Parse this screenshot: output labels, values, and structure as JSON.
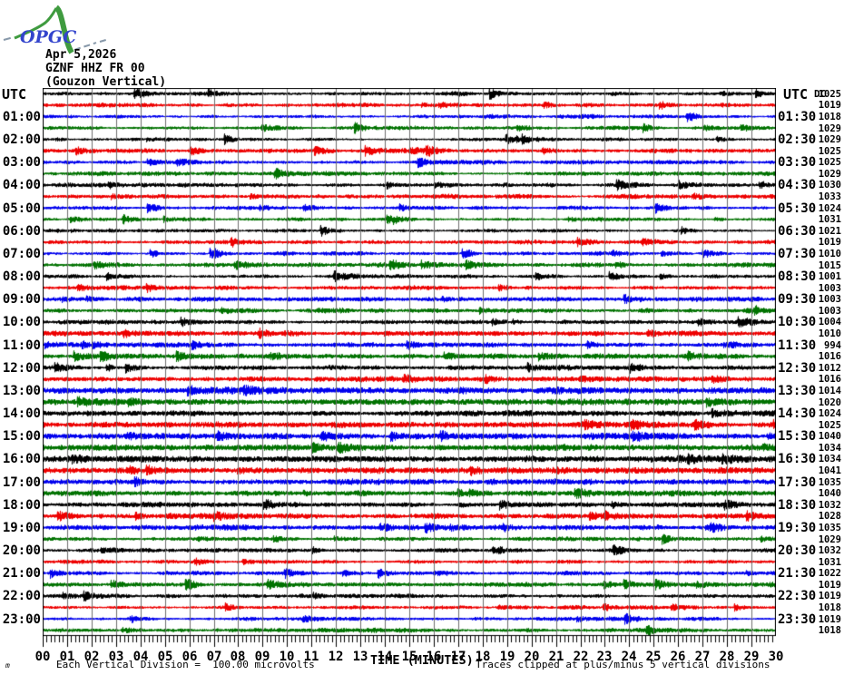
{
  "logo": {
    "text": "OPGC",
    "accent_green": "#3f9b3f",
    "accent_blue": "#3344cc",
    "dash_color": "#8899aa"
  },
  "header": {
    "date": "Apr 5,2026",
    "station": "GZNF HHZ FR 00",
    "location": "(Gouzon Vertical)"
  },
  "axis": {
    "left_header": "UTC",
    "right_header": "UTC",
    "dc_header": "DC",
    "xlabel": "TIME (MINUTES)",
    "x_ticks": [
      "00",
      "01",
      "02",
      "03",
      "04",
      "05",
      "06",
      "07",
      "08",
      "09",
      "10",
      "11",
      "12",
      "13",
      "14",
      "15",
      "16",
      "17",
      "18",
      "19",
      "20",
      "21",
      "22",
      "23",
      "24",
      "25",
      "26",
      "27",
      "28",
      "29",
      "30"
    ]
  },
  "footer": {
    "scale_note": "Each Vertical Division =  100.00 microvolts",
    "clip_note": "Traces clipped at plus/minus 5 vertical divisions",
    "corner_mark": "m"
  },
  "colors": {
    "trace_cycle": [
      "#000000",
      "#ee0000",
      "#0000ee",
      "#007200"
    ],
    "grid_line": "#6e6e6e",
    "frame": "#000000"
  },
  "rows": [
    {
      "start": "00:00",
      "left": "",
      "right": "",
      "dc": 1025
    },
    {
      "start": "00:30",
      "left": "",
      "right": "",
      "dc": 1019
    },
    {
      "start": "01:00",
      "left": "01:00",
      "right": "01:30",
      "dc": 1018
    },
    {
      "start": "01:30",
      "left": "",
      "right": "",
      "dc": 1029
    },
    {
      "start": "02:00",
      "left": "02:00",
      "right": "02:30",
      "dc": 1029
    },
    {
      "start": "02:30",
      "left": "",
      "right": "",
      "dc": 1025
    },
    {
      "start": "03:00",
      "left": "03:00",
      "right": "03:30",
      "dc": 1025
    },
    {
      "start": "03:30",
      "left": "",
      "right": "",
      "dc": 1029
    },
    {
      "start": "04:00",
      "left": "04:00",
      "right": "04:30",
      "dc": 1030
    },
    {
      "start": "04:30",
      "left": "",
      "right": "",
      "dc": 1033
    },
    {
      "start": "05:00",
      "left": "05:00",
      "right": "05:30",
      "dc": 1024
    },
    {
      "start": "05:30",
      "left": "",
      "right": "",
      "dc": 1031
    },
    {
      "start": "06:00",
      "left": "06:00",
      "right": "06:30",
      "dc": 1021
    },
    {
      "start": "06:30",
      "left": "",
      "right": "",
      "dc": 1019
    },
    {
      "start": "07:00",
      "left": "07:00",
      "right": "07:30",
      "dc": 1010
    },
    {
      "start": "07:30",
      "left": "",
      "right": "",
      "dc": 1015
    },
    {
      "start": "08:00",
      "left": "08:00",
      "right": "08:30",
      "dc": 1001
    },
    {
      "start": "08:30",
      "left": "",
      "right": "",
      "dc": 1003
    },
    {
      "start": "09:00",
      "left": "09:00",
      "right": "09:30",
      "dc": 1003
    },
    {
      "start": "09:30",
      "left": "",
      "right": "",
      "dc": 1003
    },
    {
      "start": "10:00",
      "left": "10:00",
      "right": "10:30",
      "dc": 1004
    },
    {
      "start": "10:30",
      "left": "",
      "right": "",
      "dc": 1010
    },
    {
      "start": "11:00",
      "left": "11:00",
      "right": "11:30",
      "dc": 994
    },
    {
      "start": "11:30",
      "left": "",
      "right": "",
      "dc": 1016
    },
    {
      "start": "12:00",
      "left": "12:00",
      "right": "12:30",
      "dc": 1012
    },
    {
      "start": "12:30",
      "left": "",
      "right": "",
      "dc": 1016
    },
    {
      "start": "13:00",
      "left": "13:00",
      "right": "13:30",
      "dc": 1014
    },
    {
      "start": "13:30",
      "left": "",
      "right": "",
      "dc": 1020
    },
    {
      "start": "14:00",
      "left": "14:00",
      "right": "14:30",
      "dc": 1024
    },
    {
      "start": "14:30",
      "left": "",
      "right": "",
      "dc": 1025
    },
    {
      "start": "15:00",
      "left": "15:00",
      "right": "15:30",
      "dc": 1040
    },
    {
      "start": "15:30",
      "left": "",
      "right": "",
      "dc": 1034
    },
    {
      "start": "16:00",
      "left": "16:00",
      "right": "16:30",
      "dc": 1034
    },
    {
      "start": "16:30",
      "left": "",
      "right": "",
      "dc": 1041
    },
    {
      "start": "17:00",
      "left": "17:00",
      "right": "17:30",
      "dc": 1035
    },
    {
      "start": "17:30",
      "left": "",
      "right": "",
      "dc": 1040
    },
    {
      "start": "18:00",
      "left": "18:00",
      "right": "18:30",
      "dc": 1032
    },
    {
      "start": "18:30",
      "left": "",
      "right": "",
      "dc": 1028
    },
    {
      "start": "19:00",
      "left": "19:00",
      "right": "19:30",
      "dc": 1035
    },
    {
      "start": "19:30",
      "left": "",
      "right": "",
      "dc": 1029
    },
    {
      "start": "20:00",
      "left": "20:00",
      "right": "20:30",
      "dc": 1032
    },
    {
      "start": "20:30",
      "left": "",
      "right": "",
      "dc": 1031
    },
    {
      "start": "21:00",
      "left": "21:00",
      "right": "21:30",
      "dc": 1022
    },
    {
      "start": "21:30",
      "left": "",
      "right": "",
      "dc": 1019
    },
    {
      "start": "22:00",
      "left": "22:00",
      "right": "22:30",
      "dc": 1019
    },
    {
      "start": "22:30",
      "left": "",
      "right": "",
      "dc": 1018
    },
    {
      "start": "23:00",
      "left": "23:00",
      "right": "23:30",
      "dc": 1019
    },
    {
      "start": "23:30",
      "left": "",
      "right": "",
      "dc": 1018
    }
  ],
  "chart_data": {
    "type": "line",
    "subtype": "helicorder-seismogram",
    "title": "GZNF HHZ FR 00 (Gouzon Vertical) — Apr 5,2026",
    "xlabel": "TIME (MINUTES)",
    "x_range_minutes": [
      0,
      30
    ],
    "rows": 48,
    "row_duration_minutes": 30,
    "row_color_cycle": [
      "black",
      "red",
      "blue",
      "green"
    ],
    "row_start_times": [
      "00:00",
      "00:30",
      "01:00",
      "01:30",
      "02:00",
      "02:30",
      "03:00",
      "03:30",
      "04:00",
      "04:30",
      "05:00",
      "05:30",
      "06:00",
      "06:30",
      "07:00",
      "07:30",
      "08:00",
      "08:30",
      "09:00",
      "09:30",
      "10:00",
      "10:30",
      "11:00",
      "11:30",
      "12:00",
      "12:30",
      "13:00",
      "13:30",
      "14:00",
      "14:30",
      "15:00",
      "15:30",
      "16:00",
      "16:30",
      "17:00",
      "17:30",
      "18:00",
      "18:30",
      "19:00",
      "19:30",
      "20:00",
      "20:30",
      "21:00",
      "21:30",
      "22:00",
      "22:30",
      "23:00",
      "23:30"
    ],
    "series": [
      {
        "name": "DC offset (counts)",
        "values": [
          1025,
          1019,
          1018,
          1029,
          1029,
          1025,
          1025,
          1029,
          1030,
          1033,
          1024,
          1031,
          1021,
          1019,
          1010,
          1015,
          1001,
          1003,
          1003,
          1003,
          1004,
          1010,
          994,
          1016,
          1012,
          1016,
          1014,
          1020,
          1024,
          1025,
          1040,
          1034,
          1034,
          1041,
          1035,
          1040,
          1032,
          1028,
          1035,
          1029,
          1032,
          1031,
          1022,
          1019,
          1019,
          1018,
          1019,
          1018
        ]
      }
    ],
    "scale": "1 vertical division = 100.00 microvolts",
    "clipping": "traces clipped at plus/minus 5 vertical divisions",
    "grid": "vertical gray line each minute",
    "note": "continuous background seismic noise, no dominant event; slightly higher amplitude midday rows"
  }
}
